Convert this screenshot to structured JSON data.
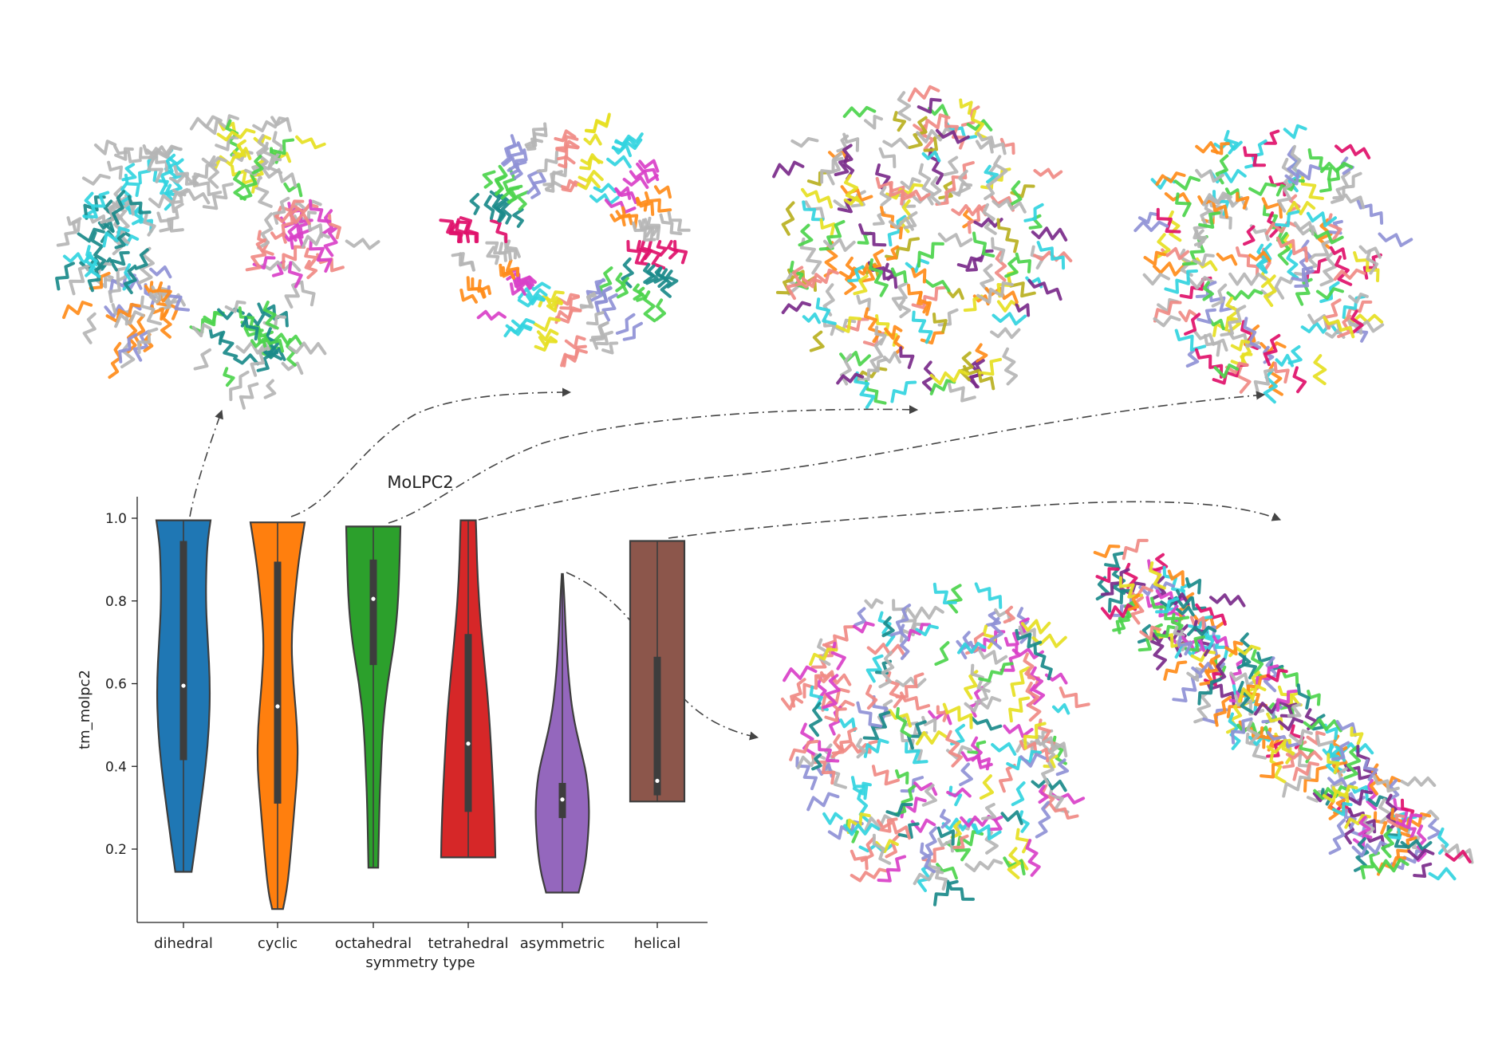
{
  "chart_data": {
    "type": "violin",
    "title": "MoLPC2",
    "xlabel": "symmetry type",
    "ylabel": "tm_molpc2",
    "ylim": [
      0.0,
      1.04
    ],
    "yticks": [
      0.2,
      0.4,
      0.6,
      0.8,
      1.0
    ],
    "ytick_labels": [
      "0.2",
      "0.4",
      "0.6",
      "0.8",
      "1.0"
    ],
    "grid": false,
    "categories": [
      "dihedral",
      "cyclic",
      "octahedral",
      "tetrahedral",
      "asymmetric",
      "helical"
    ],
    "series": [
      {
        "category": "dihedral",
        "color": "#1f77b4",
        "min": 0.145,
        "max": 0.995,
        "q1": 0.415,
        "median": 0.595,
        "q3": 0.945,
        "shape": [
          [
            0.145,
            0.3
          ],
          [
            0.2,
            0.42
          ],
          [
            0.3,
            0.62
          ],
          [
            0.4,
            0.82
          ],
          [
            0.5,
            0.95
          ],
          [
            0.6,
            0.98
          ],
          [
            0.7,
            0.9
          ],
          [
            0.8,
            0.82
          ],
          [
            0.9,
            0.85
          ],
          [
            0.95,
            0.9
          ],
          [
            0.995,
            1.0
          ]
        ]
      },
      {
        "category": "cyclic",
        "color": "#ff7f0e",
        "min": 0.055,
        "max": 0.99,
        "q1": 0.31,
        "median": 0.545,
        "q3": 0.895,
        "shape": [
          [
            0.055,
            0.2
          ],
          [
            0.1,
            0.35
          ],
          [
            0.2,
            0.5
          ],
          [
            0.3,
            0.62
          ],
          [
            0.4,
            0.75
          ],
          [
            0.5,
            0.72
          ],
          [
            0.6,
            0.58
          ],
          [
            0.7,
            0.5
          ],
          [
            0.8,
            0.62
          ],
          [
            0.9,
            0.78
          ],
          [
            0.99,
            1.0
          ]
        ]
      },
      {
        "category": "octahedral",
        "color": "#2ca02c",
        "min": 0.155,
        "max": 0.98,
        "q1": 0.645,
        "median": 0.805,
        "q3": 0.9,
        "shape": [
          [
            0.155,
            0.18
          ],
          [
            0.3,
            0.22
          ],
          [
            0.4,
            0.28
          ],
          [
            0.5,
            0.35
          ],
          [
            0.6,
            0.52
          ],
          [
            0.7,
            0.78
          ],
          [
            0.8,
            0.92
          ],
          [
            0.9,
            0.97
          ],
          [
            0.98,
            1.0
          ]
        ]
      },
      {
        "category": "tetrahedral",
        "color": "#d62728",
        "min": 0.18,
        "max": 0.995,
        "q1": 0.29,
        "median": 0.455,
        "q3": 0.72,
        "shape": [
          [
            0.18,
            1.0
          ],
          [
            0.25,
            0.98
          ],
          [
            0.35,
            0.92
          ],
          [
            0.45,
            0.84
          ],
          [
            0.55,
            0.74
          ],
          [
            0.65,
            0.6
          ],
          [
            0.75,
            0.45
          ],
          [
            0.85,
            0.35
          ],
          [
            0.95,
            0.3
          ],
          [
            0.995,
            0.28
          ]
        ]
      },
      {
        "category": "asymmetric",
        "color": "#9467bd",
        "min": 0.095,
        "max": 0.865,
        "q1": 0.275,
        "median": 0.32,
        "q3": 0.36,
        "shape": [
          [
            0.095,
            0.6
          ],
          [
            0.15,
            0.82
          ],
          [
            0.22,
            0.94
          ],
          [
            0.3,
            1.0
          ],
          [
            0.38,
            0.9
          ],
          [
            0.45,
            0.64
          ],
          [
            0.52,
            0.4
          ],
          [
            0.6,
            0.25
          ],
          [
            0.7,
            0.14
          ],
          [
            0.8,
            0.08
          ],
          [
            0.865,
            0.02
          ]
        ]
      },
      {
        "category": "helical",
        "color": "#8c564b",
        "min": 0.315,
        "max": 0.945,
        "q1": 0.33,
        "median": 0.365,
        "q3": 0.665,
        "shape": [
          [
            0.315,
            1.0
          ],
          [
            0.4,
            1.0
          ],
          [
            0.5,
            1.0
          ],
          [
            0.6,
            1.0
          ],
          [
            0.7,
            1.0
          ],
          [
            0.8,
            1.0
          ],
          [
            0.9,
            1.0
          ],
          [
            0.945,
            1.0
          ]
        ]
      }
    ]
  },
  "structure_colors": {
    "grey": "#b5b5b5",
    "cyan": "#32d4e0",
    "yellow": "#e6e022",
    "green": "#4cd44c",
    "magenta": "#d940c8",
    "orange": "#ff8c1a",
    "teal": "#1a8a8a",
    "salmon": "#f08a84",
    "slate": "#8f91d6",
    "purple": "#7a2a8a",
    "pink": "#e0106a",
    "olive": "#b8b020"
  }
}
